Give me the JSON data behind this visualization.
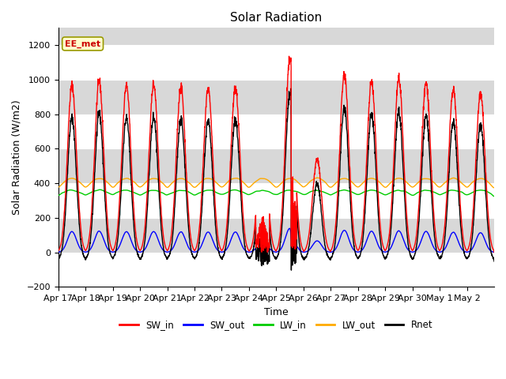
{
  "title": "Solar Radiation",
  "ylabel": "Solar Radiation (W/m2)",
  "xlabel": "Time",
  "ylim": [
    -200,
    1300
  ],
  "yticks": [
    -200,
    0,
    200,
    400,
    600,
    800,
    1000,
    1200
  ],
  "xtick_labels": [
    "Apr 17",
    "Apr 18",
    "Apr 19",
    "Apr 20",
    "Apr 21",
    "Apr 22",
    "Apr 23",
    "Apr 24",
    "Apr 25",
    "Apr 26",
    "Apr 27",
    "Apr 28",
    "Apr 29",
    "Apr 30",
    "May 1",
    "May 2"
  ],
  "colors": {
    "SW_in": "#ff0000",
    "SW_out": "#0000ff",
    "LW_in": "#00cc00",
    "LW_out": "#ffaa00",
    "Rnet": "#000000"
  },
  "annotation_text": "EE_met",
  "background_color": "#ffffff",
  "plot_bg_color": "#d8d8d8",
  "grid_color": "#ffffff",
  "title_fontsize": 11,
  "label_fontsize": 9,
  "tick_fontsize": 8
}
